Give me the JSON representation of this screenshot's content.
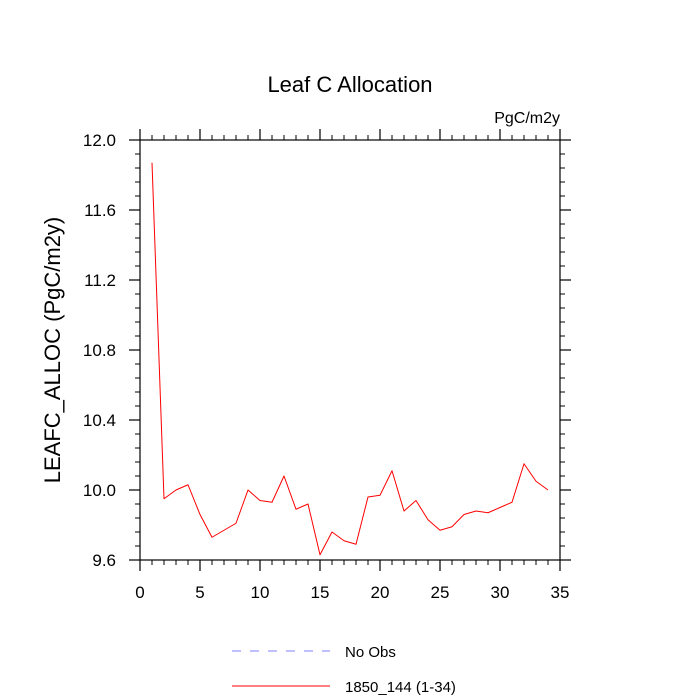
{
  "chart_data": {
    "type": "line",
    "title": "Leaf C Allocation",
    "units_label": "PgC/m2y",
    "ylabel": "LEAFC_ALLOC  (PgC/m2y)",
    "xlabel": "",
    "xlim": [
      0,
      35
    ],
    "ylim": [
      9.6,
      12.0
    ],
    "x_ticks": [
      0,
      5,
      10,
      15,
      20,
      25,
      30,
      35
    ],
    "x_tick_labels": [
      "0",
      "5",
      "10",
      "15",
      "20",
      "25",
      "30",
      "35"
    ],
    "y_ticks": [
      9.6,
      10.0,
      10.4,
      10.8,
      11.2,
      11.6,
      12.0
    ],
    "y_tick_labels": [
      "9.6",
      "10.0",
      "10.4",
      "10.8",
      "11.2",
      "11.6",
      "12.0"
    ],
    "grid": false,
    "legend_position": "bottom",
    "series": [
      {
        "name": "1850_144 (1-34)",
        "color": "#ff0000",
        "style": "solid",
        "x": [
          1,
          2,
          3,
          4,
          5,
          6,
          7,
          8,
          9,
          10,
          11,
          12,
          13,
          14,
          15,
          16,
          17,
          18,
          19,
          20,
          21,
          22,
          23,
          24,
          25,
          26,
          27,
          28,
          29,
          30,
          31,
          32,
          33,
          34
        ],
        "y": [
          11.87,
          9.95,
          10.0,
          10.03,
          9.86,
          9.73,
          9.77,
          9.81,
          10.0,
          9.94,
          9.93,
          10.08,
          9.89,
          9.92,
          9.63,
          9.76,
          9.71,
          9.69,
          9.96,
          9.97,
          10.11,
          9.88,
          9.94,
          9.83,
          9.77,
          9.79,
          9.86,
          9.88,
          9.87,
          9.9,
          9.93,
          10.15,
          10.05,
          10.0
        ]
      }
    ],
    "legend": [
      {
        "label": "No Obs",
        "color": "#8080ff",
        "style": "dashed"
      },
      {
        "label": "1850_144 (1-34)",
        "color": "#ff0000",
        "style": "solid"
      }
    ]
  }
}
